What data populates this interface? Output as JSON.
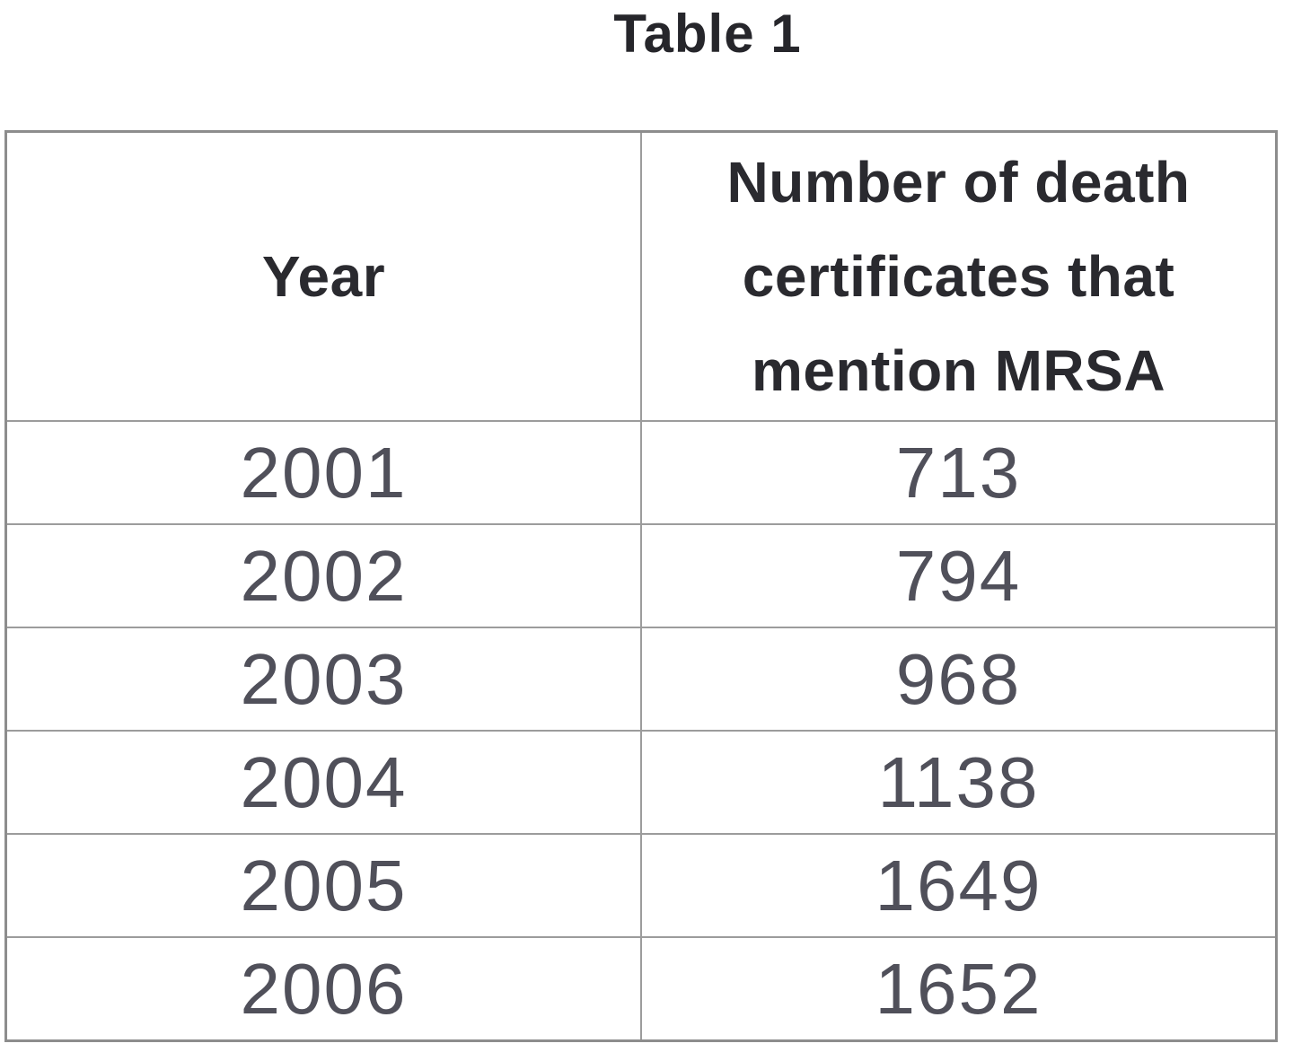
{
  "page": {
    "title": "Table 1"
  },
  "table": {
    "columns": [
      "Year",
      "Number of death\ncertificates that\nmention MRSA"
    ],
    "rows": [
      {
        "year": "2001",
        "value": "713"
      },
      {
        "year": "2002",
        "value": "794"
      },
      {
        "year": "2003",
        "value": "968"
      },
      {
        "year": "2004",
        "value": "1138"
      },
      {
        "year": "2005",
        "value": "1649"
      },
      {
        "year": "2006",
        "value": "1652"
      }
    ]
  },
  "chart_data": {
    "type": "table",
    "title": "Table 1",
    "columns": [
      "Year",
      "Number of death certificates that mention MRSA"
    ],
    "rows": [
      [
        2001,
        713
      ],
      [
        2002,
        794
      ],
      [
        2003,
        968
      ],
      [
        2004,
        1138
      ],
      [
        2005,
        1649
      ],
      [
        2006,
        1652
      ]
    ]
  },
  "colors": {
    "background": "#ffffff",
    "border_outer": "#8d8d8d",
    "border_inner": "#9c9c9c",
    "header_text": "#2a2a2f",
    "data_text": "#50505a",
    "title_text": "#26262b"
  }
}
